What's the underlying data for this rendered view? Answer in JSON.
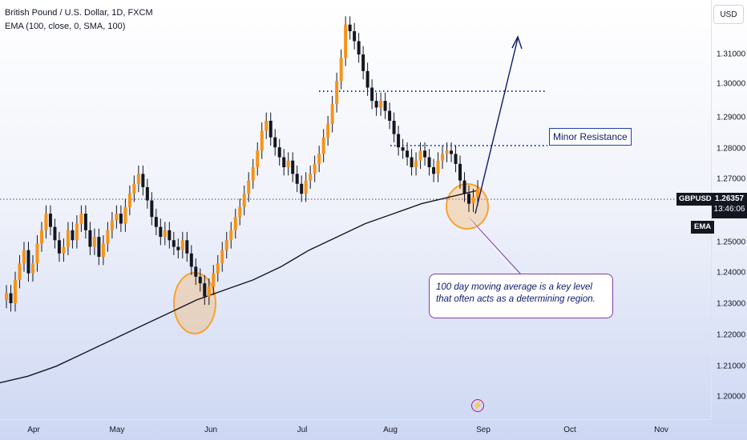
{
  "header": {
    "title": "British Pound / U.S. Dollar, 1D, FXCM",
    "indicator": "EMA (100, close, 0, SMA, 100)"
  },
  "currency_button": "USD",
  "price_tag": {
    "symbol": "GBPUSD",
    "price": "1.26357",
    "countdown": "13:46:06"
  },
  "ema_tag": "EMA",
  "annotations": {
    "minor_resistance": "Minor Resistance",
    "note_line1": "100 day moving average is a key level",
    "note_line2": "that often acts as a determining region."
  },
  "colors": {
    "up": "#f7931a",
    "down": "#131722",
    "ema": "#131722",
    "annotation_blue": "#1e3fa8",
    "highlight": "#f7a234"
  },
  "icons": {
    "event_marker": "lightning-bolt-icon"
  },
  "chart_data": {
    "type": "candlestick",
    "title": "British Pound / U.S. Dollar, 1D, FXCM",
    "x_ticks": [
      "Apr",
      "May",
      "Jun",
      "Jul",
      "Aug",
      "Sep",
      "Oct",
      "Nov"
    ],
    "y_ticks": [
      "1.31000",
      "1.30000",
      "1.29000",
      "1.28000",
      "1.27000",
      "1.25000",
      "1.24000",
      "1.23000",
      "1.22000",
      "1.21000",
      "1.20000"
    ],
    "ylim": [
      1.195,
      1.318
    ],
    "current_price": 1.26357,
    "candles_close": [
      1.232,
      1.229,
      1.236,
      1.241,
      1.245,
      1.238,
      1.241,
      1.247,
      1.251,
      1.256,
      1.252,
      1.248,
      1.244,
      1.246,
      1.251,
      1.248,
      1.253,
      1.256,
      1.251,
      1.246,
      1.249,
      1.243,
      1.247,
      1.251,
      1.254,
      1.256,
      1.253,
      1.258,
      1.262,
      1.265,
      1.268,
      1.264,
      1.26,
      1.255,
      1.252,
      1.249,
      1.251,
      1.248,
      1.246,
      1.245,
      1.248,
      1.244,
      1.24,
      1.237,
      1.235,
      1.231,
      1.234,
      1.238,
      1.241,
      1.245,
      1.248,
      1.251,
      1.255,
      1.258,
      1.262,
      1.266,
      1.27,
      1.275,
      1.281,
      1.284,
      1.279,
      1.276,
      1.273,
      1.27,
      1.272,
      1.268,
      1.265,
      1.262,
      1.266,
      1.268,
      1.271,
      1.274,
      1.279,
      1.283,
      1.289,
      1.296,
      1.303,
      1.313,
      1.311,
      1.308,
      1.304,
      1.299,
      1.294,
      1.29,
      1.288,
      1.29,
      1.287,
      1.284,
      1.28,
      1.276,
      1.275,
      1.273,
      1.27,
      1.272,
      1.275,
      1.273,
      1.27,
      1.268,
      1.272,
      1.274,
      1.275,
      1.274,
      1.271,
      1.266,
      1.262,
      1.259,
      1.261,
      1.2636
    ],
    "ema_100": [
      1.205,
      1.207,
      1.21,
      1.214,
      1.218,
      1.222,
      1.226,
      1.23,
      1.233,
      1.236,
      1.24,
      1.245,
      1.249,
      1.253,
      1.256,
      1.259,
      1.261,
      1.263
    ],
    "levels": {
      "resistance_major": 1.2985,
      "resistance_minor": 1.2805
    },
    "annotation_text": [
      "Minor Resistance",
      "100 day moving average is a key level that often acts as a determining region."
    ]
  }
}
